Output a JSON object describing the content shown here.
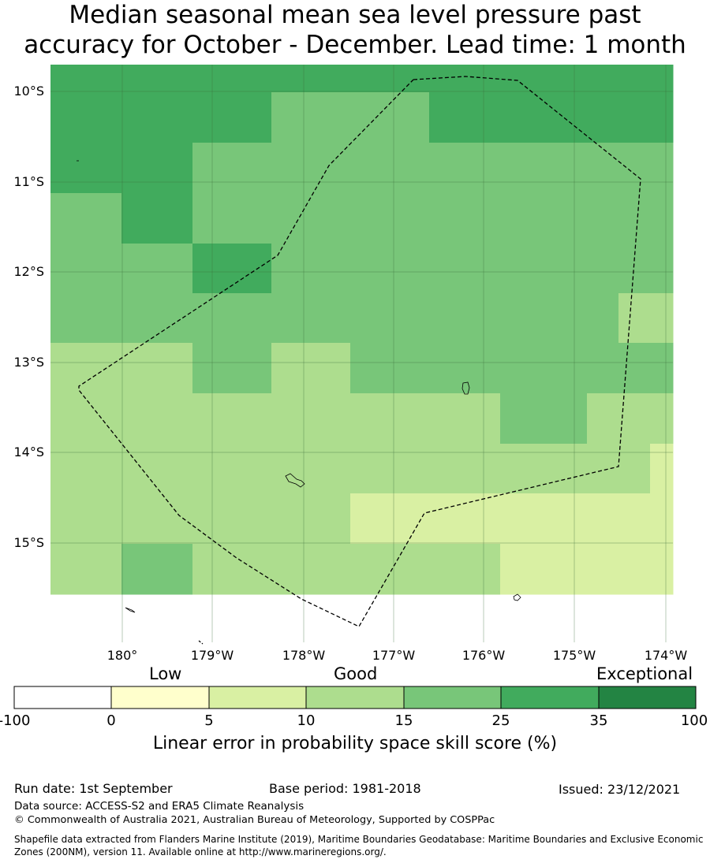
{
  "title": "Median seasonal mean sea level pressure past\naccuracy for October - December. Lead time: 1 month",
  "map": {
    "lat_labels": [
      "10°S",
      "11°S",
      "12°S",
      "13°S",
      "14°S",
      "15°S"
    ],
    "lon_labels": [
      "180°",
      "179°W",
      "178°W",
      "177°W",
      "176°W",
      "175°W",
      "174°W"
    ],
    "colors": {
      "c0": "#ffffcc",
      "c1": "#d9f0a3",
      "c2": "#addd8e",
      "c3": "#78c679",
      "c4": "#41ab5d",
      "c5": "#238443"
    },
    "skill_grid": [
      [
        4,
        4,
        4,
        4,
        4,
        4,
        4,
        4,
        4,
        4,
        4,
        4,
        4,
        4,
        4,
        4,
        4,
        4,
        4,
        4,
        4,
        4,
        4,
        4,
        4,
        4,
        4,
        4,
        4,
        4,
        4,
        4,
        4,
        4,
        4,
        4,
        4,
        4,
        4,
        4,
        4,
        4,
        4,
        4,
        4,
        4,
        4,
        4,
        4,
        4,
        4,
        4,
        4,
        4,
        4,
        4,
        4,
        4,
        4,
        4,
        4,
        4,
        4,
        4,
        4,
        4,
        4,
        4,
        4,
        4,
        4,
        4,
        4,
        4,
        4,
        4,
        4,
        4,
        4
      ],
      [
        4,
        4,
        4,
        4,
        4,
        4,
        4,
        4,
        4,
        4,
        4,
        4,
        4,
        4,
        4,
        4,
        4,
        4,
        4,
        4,
        4,
        4,
        4,
        4,
        4,
        4,
        4,
        4,
        3,
        3,
        3,
        3,
        3,
        3,
        3,
        3,
        3,
        3,
        3,
        3,
        3,
        3,
        3,
        3,
        3,
        3,
        3,
        3,
        4,
        4,
        4,
        4,
        4,
        4,
        4,
        4,
        4,
        4,
        4,
        4,
        4,
        4,
        4,
        4,
        4,
        4,
        4,
        4,
        4,
        4,
        4,
        4,
        4,
        4,
        4,
        4,
        4,
        4,
        4
      ],
      [
        4,
        4,
        4,
        4,
        4,
        4,
        4,
        4,
        4,
        4,
        4,
        4,
        4,
        4,
        4,
        4,
        4,
        4,
        3,
        3,
        3,
        3,
        3,
        3,
        3,
        3,
        3,
        3,
        3,
        3,
        3,
        3,
        3,
        3,
        3,
        3,
        3,
        3,
        3,
        3,
        3,
        3,
        3,
        3,
        3,
        3,
        3,
        3,
        3,
        3,
        3,
        3,
        3,
        3,
        3,
        3,
        3,
        3,
        3,
        3,
        3,
        3,
        3,
        3,
        3,
        3,
        3,
        3,
        3,
        3,
        3,
        3,
        3,
        3,
        3,
        3,
        3,
        3,
        3
      ],
      [
        3,
        3,
        3,
        3,
        3,
        3,
        3,
        3,
        3,
        4,
        4,
        4,
        4,
        4,
        4,
        4,
        4,
        4,
        3,
        3,
        3,
        3,
        3,
        3,
        3,
        3,
        3,
        3,
        3,
        3,
        3,
        3,
        3,
        3,
        3,
        3,
        3,
        3,
        3,
        3,
        3,
        3,
        3,
        3,
        3,
        3,
        3,
        3,
        3,
        3,
        3,
        3,
        3,
        3,
        3,
        3,
        3,
        3,
        3,
        3,
        3,
        3,
        3,
        3,
        3,
        3,
        3,
        3,
        3,
        3,
        3,
        3,
        3,
        3,
        3,
        3,
        3,
        3,
        3
      ],
      [
        3,
        3,
        3,
        3,
        3,
        3,
        3,
        3,
        3,
        3,
        3,
        3,
        3,
        3,
        3,
        3,
        3,
        3,
        4,
        4,
        4,
        4,
        4,
        4,
        4,
        4,
        4,
        4,
        3,
        3,
        3,
        3,
        3,
        3,
        3,
        3,
        3,
        3,
        3,
        3,
        3,
        3,
        3,
        3,
        3,
        3,
        3,
        3,
        3,
        3,
        3,
        3,
        3,
        3,
        3,
        3,
        3,
        3,
        3,
        3,
        3,
        3,
        3,
        3,
        3,
        3,
        3,
        3,
        3,
        3,
        3,
        3,
        3,
        3,
        3,
        3,
        3,
        3,
        3
      ],
      [
        3,
        3,
        3,
        3,
        3,
        3,
        3,
        3,
        3,
        3,
        3,
        3,
        3,
        3,
        3,
        3,
        3,
        3,
        3,
        3,
        3,
        3,
        3,
        3,
        3,
        3,
        3,
        3,
        3,
        3,
        3,
        3,
        3,
        3,
        3,
        3,
        3,
        3,
        3,
        3,
        3,
        3,
        3,
        3,
        3,
        3,
        3,
        3,
        3,
        3,
        3,
        3,
        3,
        3,
        3,
        3,
        3,
        3,
        3,
        3,
        3,
        3,
        3,
        3,
        3,
        3,
        3,
        3,
        3,
        3,
        3,
        3,
        2,
        2,
        2,
        2,
        2,
        2,
        2
      ],
      [
        2,
        2,
        2,
        2,
        2,
        2,
        2,
        2,
        2,
        2,
        2,
        2,
        2,
        2,
        2,
        2,
        2,
        2,
        3,
        3,
        3,
        3,
        3,
        3,
        3,
        3,
        3,
        3,
        2,
        2,
        2,
        2,
        2,
        2,
        2,
        2,
        2,
        2,
        3,
        3,
        3,
        3,
        3,
        3,
        3,
        3,
        3,
        3,
        3,
        3,
        3,
        3,
        3,
        3,
        3,
        3,
        3,
        3,
        3,
        3,
        3,
        3,
        3,
        3,
        3,
        3,
        3,
        3,
        3,
        3,
        3,
        3,
        3,
        3,
        3,
        3,
        3,
        3,
        3
      ],
      [
        2,
        2,
        2,
        2,
        2,
        2,
        2,
        2,
        2,
        2,
        2,
        2,
        2,
        2,
        2,
        2,
        2,
        2,
        2,
        2,
        2,
        2,
        2,
        2,
        2,
        2,
        2,
        2,
        2,
        2,
        2,
        2,
        2,
        2,
        2,
        2,
        2,
        2,
        2,
        2,
        2,
        2,
        2,
        2,
        2,
        2,
        2,
        2,
        2,
        2,
        2,
        2,
        2,
        2,
        2,
        2,
        2,
        3,
        3,
        3,
        3,
        3,
        3,
        3,
        3,
        3,
        3,
        3,
        2,
        2,
        2,
        2,
        2,
        2,
        2,
        2,
        2,
        2,
        2
      ],
      [
        2,
        2,
        2,
        2,
        2,
        2,
        2,
        2,
        2,
        2,
        2,
        2,
        2,
        2,
        2,
        2,
        2,
        2,
        2,
        2,
        2,
        2,
        2,
        2,
        2,
        2,
        2,
        2,
        2,
        2,
        2,
        2,
        2,
        2,
        2,
        2,
        2,
        2,
        2,
        2,
        2,
        2,
        2,
        2,
        2,
        2,
        2,
        2,
        2,
        2,
        2,
        2,
        2,
        2,
        2,
        2,
        2,
        2,
        2,
        2,
        2,
        2,
        2,
        2,
        2,
        2,
        2,
        2,
        2,
        2,
        2,
        2,
        2,
        2,
        2,
        2,
        1,
        1,
        1
      ],
      [
        2,
        2,
        2,
        2,
        2,
        2,
        2,
        2,
        2,
        2,
        2,
        2,
        2,
        2,
        2,
        2,
        2,
        2,
        2,
        2,
        2,
        2,
        2,
        2,
        2,
        2,
        2,
        2,
        2,
        2,
        2,
        2,
        2,
        2,
        2,
        2,
        2,
        2,
        1,
        1,
        1,
        1,
        1,
        1,
        1,
        1,
        1,
        1,
        1,
        1,
        1,
        1,
        1,
        1,
        1,
        1,
        1,
        1,
        1,
        1,
        1,
        1,
        1,
        1,
        1,
        1,
        1,
        1,
        1,
        1,
        1,
        1,
        1,
        1,
        1,
        1,
        1,
        1,
        1
      ],
      [
        2,
        2,
        2,
        2,
        2,
        2,
        2,
        2,
        2,
        3,
        3,
        3,
        3,
        3,
        3,
        3,
        3,
        3,
        2,
        2,
        2,
        2,
        2,
        2,
        2,
        2,
        2,
        2,
        2,
        2,
        2,
        2,
        2,
        2,
        2,
        2,
        2,
        2,
        2,
        2,
        2,
        2,
        2,
        2,
        2,
        2,
        2,
        2,
        2,
        2,
        2,
        2,
        2,
        2,
        2,
        2,
        2,
        1,
        1,
        1,
        1,
        1,
        1,
        1,
        1,
        1,
        1,
        1,
        1,
        1,
        1,
        1,
        1,
        1,
        1,
        1,
        1,
        1,
        1
      ]
    ]
  },
  "colorbar": {
    "category_labels": [
      "Low",
      "Good",
      "Exceptional"
    ],
    "tick_labels": [
      "-100",
      "0",
      "5",
      "10",
      "15",
      "25",
      "35",
      "100"
    ],
    "colors": [
      "#ffffff",
      "#ffffcc",
      "#d9f0a3",
      "#addd8e",
      "#78c679",
      "#41ab5d",
      "#238443"
    ],
    "axis_label": "Linear error in probability space skill score (%)"
  },
  "footer": {
    "run_date": "Run date: 1st September",
    "base_period": "Base period: 1981-2018",
    "issued": "Issued: 23/12/2021",
    "data_source": "Data source: ACCESS-S2 and ERA5 Climate Reanalysis",
    "copyright": "© Commonwealth of Australia 2021, Australian Bureau of Meteorology, Supported by COSPPac",
    "shapefile_note": "Shapefile data extracted from Flanders Marine Institute (2019), Maritime Boundaries Geodatabase: Maritime Boundaries and Exclusive Economic Zones (200NM), version 11. Available online at http://www.marineregions.org/."
  }
}
